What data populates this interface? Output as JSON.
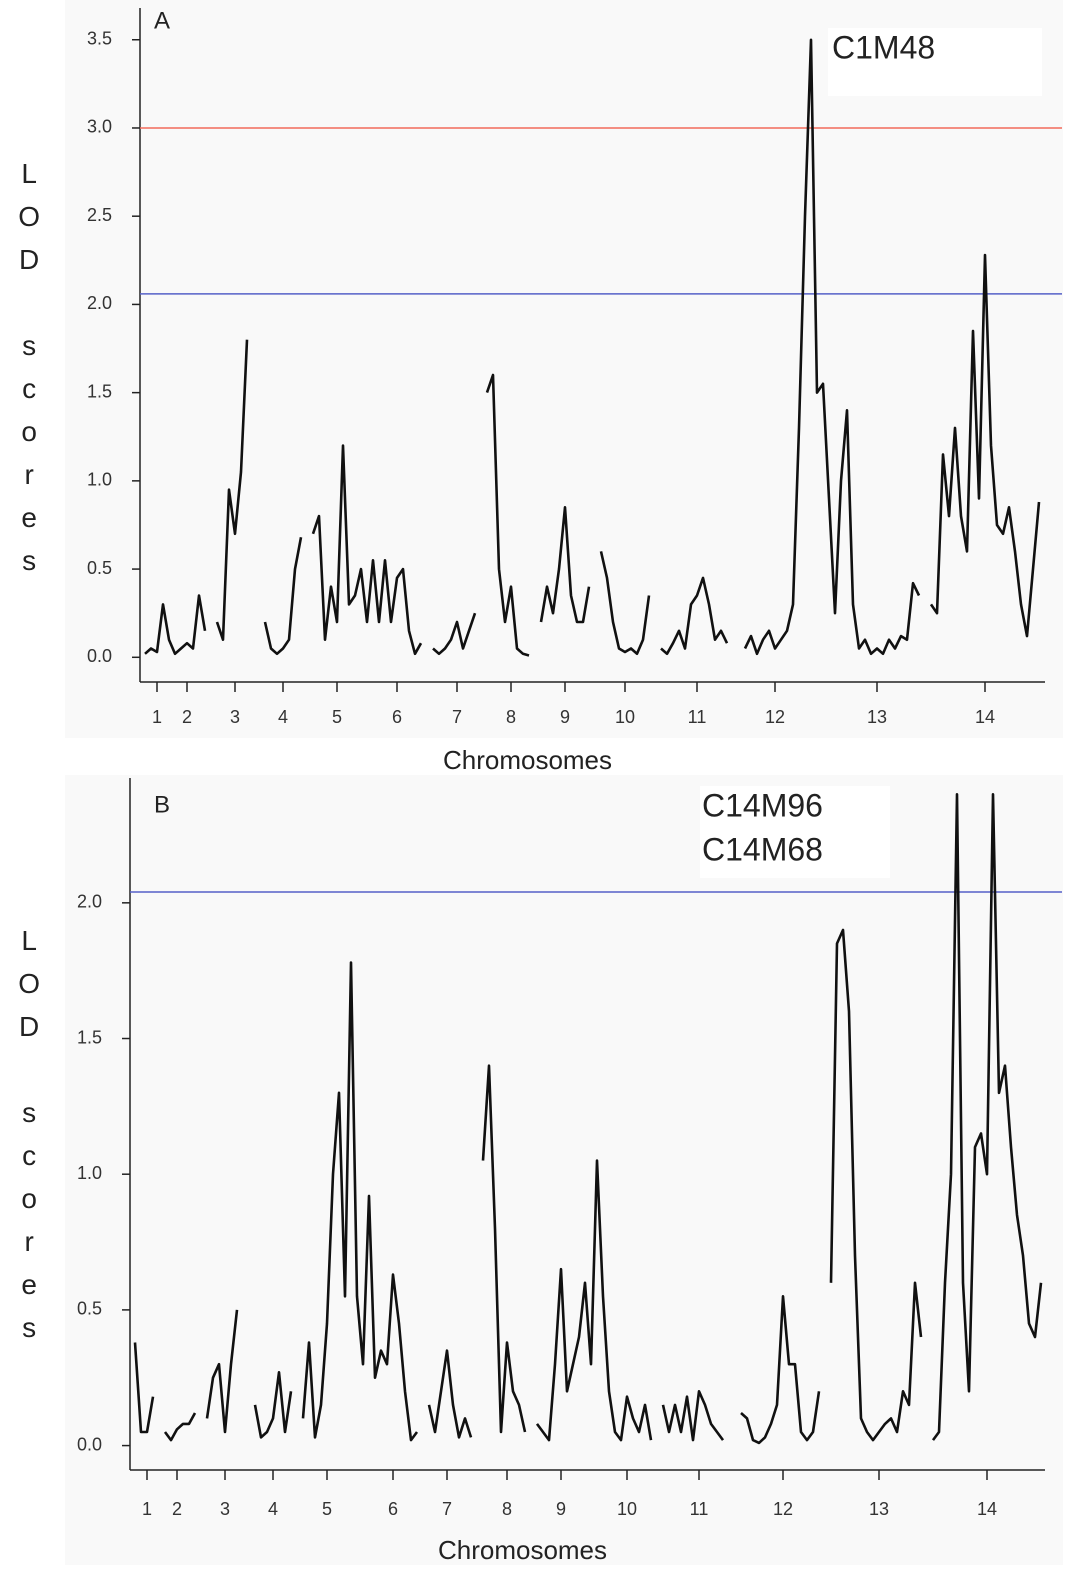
{
  "chart_data": [
    {
      "type": "line",
      "panel_label": "A",
      "annotation": "C1M48",
      "xlabel": "Chromosomes",
      "ylabel": "LOD scores",
      "color": "#111111",
      "ylim": [
        -0.14,
        3.68
      ],
      "yticks": [
        {
          "value": 0,
          "label": "0.0"
        },
        0.5,
        {
          "value": 1,
          "label": "1.0"
        },
        1.5,
        {
          "value": 2,
          "label": "2.0"
        },
        2.5,
        {
          "value": 3,
          "label": "3.0"
        },
        3.5
      ],
      "reference_lines": [
        {
          "value": 3,
          "color": "#f26b5b"
        },
        {
          "value": 2.06,
          "color": "#5560c8"
        }
      ],
      "categories": [
        null,
        null,
        "1",
        null,
        null,
        null,
        null,
        "2",
        null,
        null,
        null,
        null,
        null,
        null,
        null,
        "3",
        null,
        null,
        null,
        null,
        null,
        null,
        null,
        "4",
        null,
        null,
        null,
        null,
        null,
        null,
        null,
        null,
        "5",
        null,
        null,
        null,
        null,
        null,
        null,
        null,
        null,
        null,
        "6",
        null,
        null,
        null,
        null,
        null,
        null,
        null,
        null,
        null,
        "7",
        null,
        null,
        null,
        null,
        null,
        null,
        null,
        null,
        "8",
        null,
        null,
        null,
        null,
        null,
        null,
        null,
        null,
        "9",
        null,
        null,
        null,
        null,
        null,
        null,
        null,
        null,
        null,
        "10",
        null,
        null,
        null,
        null,
        null,
        null,
        null,
        null,
        null,
        null,
        null,
        "11",
        null,
        null,
        null,
        null,
        null,
        null,
        null,
        null,
        null,
        null,
        null,
        null,
        "12",
        null,
        null,
        null,
        null,
        null,
        null,
        null,
        null,
        null,
        null,
        null,
        null,
        null,
        null,
        null,
        null,
        "13",
        null,
        null,
        null,
        null,
        null,
        null,
        null,
        null,
        null,
        null,
        null,
        null,
        null,
        null,
        null,
        null,
        null,
        "14",
        null,
        null,
        null,
        null,
        null,
        null,
        null,
        null,
        null
      ],
      "values": [
        0.02,
        0.05,
        0.03,
        0.3,
        0.1,
        0.02,
        0.05,
        0.08,
        0.05,
        0.35,
        0.15,
        null,
        0.2,
        0.1,
        0.95,
        0.7,
        1.05,
        1.8,
        null,
        null,
        0.2,
        0.05,
        0.02,
        0.05,
        0.1,
        0.5,
        0.68,
        null,
        0.7,
        0.8,
        0.1,
        0.4,
        0.2,
        1.2,
        0.3,
        0.35,
        0.5,
        0.2,
        0.55,
        0.2,
        0.55,
        0.2,
        0.45,
        0.5,
        0.15,
        0.02,
        0.08,
        null,
        0.05,
        0.02,
        0.05,
        0.1,
        0.2,
        0.05,
        0.15,
        0.25,
        null,
        1.5,
        1.6,
        0.5,
        0.2,
        0.4,
        0.05,
        0.02,
        0.01,
        null,
        0.2,
        0.4,
        0.25,
        0.5,
        0.85,
        0.35,
        0.2,
        0.2,
        0.4,
        null,
        0.6,
        0.45,
        0.2,
        0.05,
        0.03,
        0.05,
        0.02,
        0.1,
        0.35,
        null,
        0.05,
        0.02,
        0.08,
        0.15,
        0.05,
        0.3,
        0.35,
        0.45,
        0.3,
        0.1,
        0.15,
        0.08,
        null,
        null,
        0.05,
        0.12,
        0.02,
        0.1,
        0.15,
        0.05,
        0.1,
        0.15,
        0.3,
        1.3,
        2.5,
        3.5,
        1.5,
        1.55,
        0.9,
        0.25,
        1.0,
        1.4,
        0.3,
        0.05,
        0.1,
        0.02,
        0.05,
        0.02,
        0.1,
        0.05,
        0.12,
        0.1,
        0.42,
        0.35,
        null,
        0.3,
        0.25,
        1.15,
        0.8,
        1.3,
        0.8,
        0.6,
        1.85,
        0.9,
        2.28,
        1.2,
        0.75,
        0.7,
        0.85,
        0.6,
        0.3,
        0.12,
        0.5,
        0.88
      ]
    },
    {
      "type": "line",
      "panel_label": "B",
      "annotation": [
        "C14M96",
        "C14M68"
      ],
      "xlabel": "Chromosomes",
      "ylabel": "LOD scores",
      "color": "#111111",
      "ylim": [
        -0.09,
        2.46
      ],
      "yticks": [
        {
          "value": 0,
          "label": "0.0"
        },
        0.5,
        {
          "value": 1,
          "label": "1.0"
        },
        1.5,
        {
          "value": 2,
          "label": "2.0"
        }
      ],
      "reference_lines": [
        {
          "value": 2.04,
          "color": "#5560c8"
        }
      ],
      "categories": [
        null,
        null,
        "1",
        null,
        null,
        null,
        null,
        "2",
        null,
        null,
        null,
        null,
        null,
        null,
        null,
        "3",
        null,
        null,
        null,
        null,
        null,
        null,
        null,
        "4",
        null,
        null,
        null,
        null,
        null,
        null,
        null,
        null,
        "5",
        null,
        null,
        null,
        null,
        null,
        null,
        null,
        null,
        null,
        null,
        "6",
        null,
        null,
        null,
        null,
        null,
        null,
        null,
        null,
        "7",
        null,
        null,
        null,
        null,
        null,
        null,
        null,
        null,
        null,
        "8",
        null,
        null,
        null,
        null,
        null,
        null,
        null,
        null,
        "9",
        null,
        null,
        null,
        null,
        null,
        null,
        null,
        null,
        null,
        null,
        "10",
        null,
        null,
        null,
        null,
        null,
        null,
        null,
        null,
        null,
        null,
        null,
        "11",
        null,
        null,
        null,
        null,
        null,
        null,
        null,
        null,
        null,
        null,
        null,
        null,
        null,
        "12",
        null,
        null,
        null,
        null,
        null,
        null,
        null,
        null,
        null,
        null,
        null,
        null,
        null,
        null,
        null,
        "13",
        null,
        null,
        null,
        null,
        null,
        null,
        null,
        null,
        null,
        null,
        null,
        null,
        null,
        null,
        null,
        null,
        null,
        "14",
        null,
        null,
        null,
        null,
        null,
        null,
        null,
        null,
        null
      ],
      "values": [
        0.38,
        0.05,
        0.05,
        0.18,
        null,
        0.05,
        0.02,
        0.06,
        0.08,
        0.08,
        0.12,
        null,
        0.1,
        0.25,
        0.3,
        0.05,
        0.3,
        0.5,
        null,
        null,
        0.15,
        0.03,
        0.05,
        0.1,
        0.27,
        0.05,
        0.2,
        null,
        0.1,
        0.38,
        0.03,
        0.15,
        0.45,
        1.0,
        1.3,
        0.55,
        1.78,
        0.55,
        0.3,
        0.92,
        0.25,
        0.35,
        0.3,
        0.63,
        0.45,
        0.2,
        0.02,
        0.05,
        null,
        0.15,
        0.05,
        0.2,
        0.35,
        0.15,
        0.03,
        0.1,
        0.03,
        null,
        1.05,
        1.4,
        0.8,
        0.05,
        0.38,
        0.2,
        0.15,
        0.05,
        null,
        0.08,
        0.05,
        0.02,
        0.3,
        0.65,
        0.2,
        0.3,
        0.4,
        0.6,
        0.3,
        1.05,
        0.55,
        0.2,
        0.05,
        0.02,
        0.18,
        0.1,
        0.05,
        0.15,
        0.02,
        null,
        0.15,
        0.05,
        0.15,
        0.05,
        0.18,
        0.02,
        0.2,
        0.15,
        0.08,
        0.05,
        0.02,
        null,
        null,
        0.12,
        0.1,
        0.02,
        0.01,
        0.03,
        0.08,
        0.15,
        0.55,
        0.3,
        0.3,
        0.05,
        0.02,
        0.05,
        0.2,
        null,
        0.6,
        1.85,
        1.9,
        1.6,
        0.7,
        0.1,
        0.05,
        0.02,
        0.05,
        0.08,
        0.1,
        0.05,
        0.2,
        0.15,
        0.6,
        0.4,
        null,
        0.02,
        0.05,
        0.6,
        1.0,
        2.4,
        0.6,
        0.2,
        1.1,
        1.15,
        1.0,
        2.4,
        1.3,
        1.4,
        1.1,
        0.85,
        0.7,
        0.45,
        0.4,
        0.6
      ]
    }
  ]
}
